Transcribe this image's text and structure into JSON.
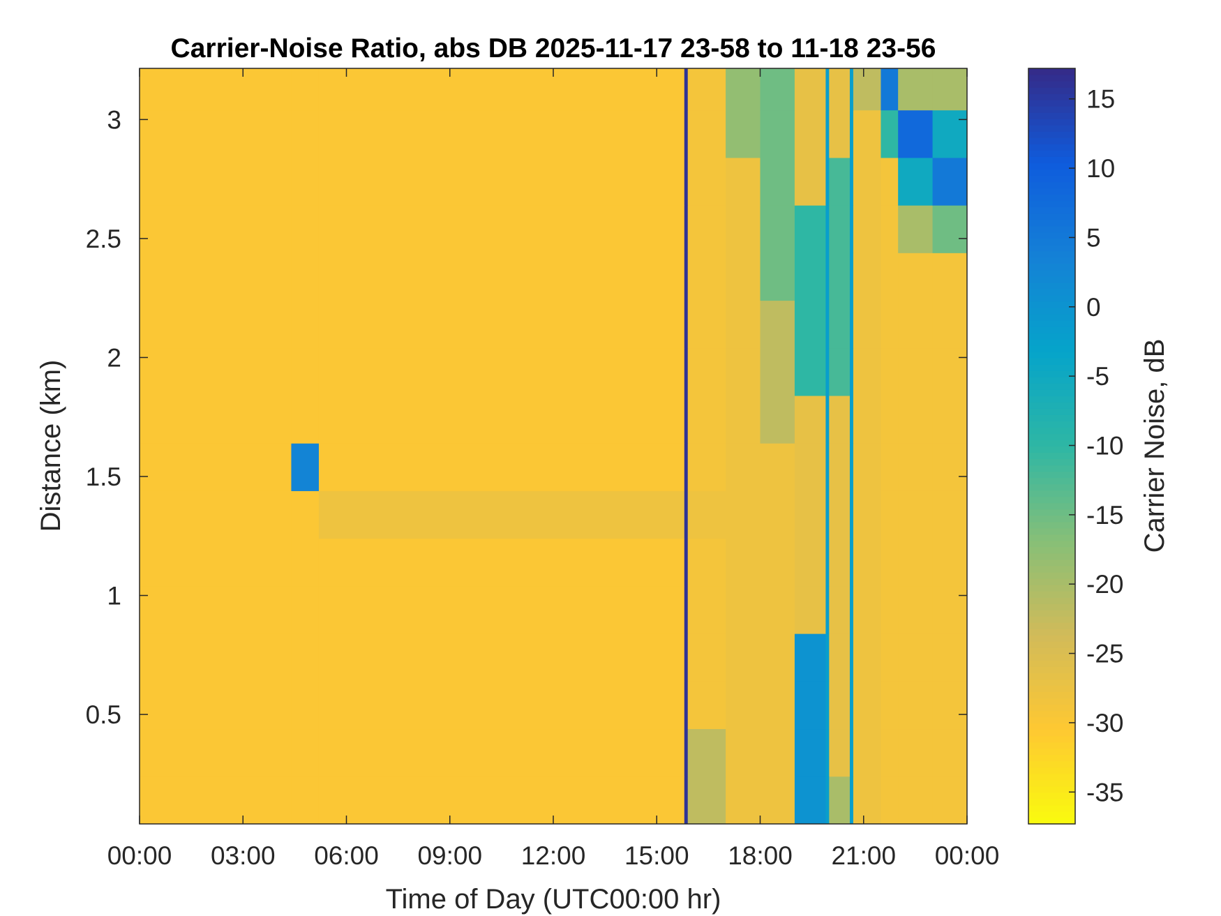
{
  "chart_data": {
    "type": "heatmap",
    "title": "Carrier-Noise Ratio, abs DB 2025-11-17 23-58 to 11-18 23-56",
    "x_label": "Time of Day (UTC00:00 hr)",
    "y_label": "Distance (km)",
    "colorbar_label": "Carrier Noise, dB",
    "xlim": [
      0,
      24
    ],
    "xticks": [
      {
        "value": 0,
        "label": "00:00"
      },
      {
        "value": 3,
        "label": "03:00"
      },
      {
        "value": 6,
        "label": "06:00"
      },
      {
        "value": 9,
        "label": "09:00"
      },
      {
        "value": 12,
        "label": "12:00"
      },
      {
        "value": 15,
        "label": "15:00"
      },
      {
        "value": 18,
        "label": "18:00"
      },
      {
        "value": 21,
        "label": "21:00"
      },
      {
        "value": 24,
        "label": "00:00"
      }
    ],
    "ylim": [
      0.04,
      3.215
    ],
    "yticks": [
      0.5,
      1,
      1.5,
      2,
      2.5,
      3
    ],
    "clim": [
      -37.3,
      17.2
    ],
    "cticks": [
      -35,
      -30,
      -25,
      -20,
      -15,
      -10,
      -5,
      0,
      5,
      10,
      15
    ],
    "colormap": [
      "#f9fb0e",
      "#fec832",
      "#d1bb59",
      "#87bf77",
      "#2eb7a4",
      "#06a4ca",
      "#1481d6",
      "#0f5cdd",
      "#352a87"
    ],
    "xbins": [
      0,
      4.4,
      5.2,
      15.8,
      15.9,
      17,
      18,
      19,
      19.9,
      20,
      20.6,
      20.7,
      21.5,
      22,
      23,
      24
    ],
    "ybins": [
      0.04,
      0.24,
      0.44,
      0.64,
      0.84,
      1.04,
      1.24,
      1.44,
      1.64,
      1.84,
      2.04,
      2.24,
      2.44,
      2.64,
      2.84,
      3.04,
      3.215
    ],
    "z": [
      [
        -30,
        -30,
        -30,
        16,
        -22,
        -28,
        -28,
        0,
        -2,
        -20,
        -2,
        -28,
        -29,
        -29,
        -29
      ],
      [
        -30,
        -30,
        -30,
        16,
        -22,
        -28,
        -28,
        0,
        -2,
        -27,
        -2,
        -28,
        -29,
        -29,
        -29
      ],
      [
        -30,
        -30,
        -30,
        16,
        -29,
        -28,
        -28,
        0,
        -2,
        -27,
        -2,
        -28,
        -29,
        -29,
        -29
      ],
      [
        -30,
        -30,
        -30,
        16,
        -29,
        -28,
        -28,
        0,
        -2,
        -27,
        -2,
        -28,
        -29,
        -29,
        -29
      ],
      [
        -30,
        -30,
        -30,
        16,
        -29,
        -28,
        -28,
        -27,
        -2,
        -27,
        -2,
        -28,
        -29,
        -29,
        -29
      ],
      [
        -30,
        -30,
        -30,
        16,
        -29,
        -28,
        -28,
        -27,
        -2,
        -27,
        -2,
        -28,
        -29,
        -29,
        -29
      ],
      [
        -30,
        -30,
        -28,
        16,
        -28,
        -28,
        -28,
        -27,
        -2,
        -27,
        -2,
        -28,
        -29,
        -29,
        -29
      ],
      [
        -30,
        3,
        -30,
        16,
        -29,
        -28,
        -28,
        -27,
        -2,
        -27,
        -2,
        -28,
        -29,
        -29,
        -29
      ],
      [
        -30,
        -30,
        -30,
        16,
        -29,
        -28,
        -22,
        -27,
        -2,
        -27,
        -2,
        -28,
        -29,
        -29,
        -29
      ],
      [
        -30,
        -30,
        -30,
        16,
        -29,
        -28,
        -22,
        -10,
        -2,
        -12,
        -2,
        -28,
        -29,
        -29,
        -29
      ],
      [
        -30,
        -30,
        -30,
        16,
        -29,
        -28,
        -22,
        -10,
        -2,
        -12,
        -2,
        -28,
        -29,
        -29,
        -29
      ],
      [
        -30,
        -30,
        -30,
        16,
        -29,
        -28,
        -15,
        -10,
        -2,
        -12,
        -2,
        -28,
        -29,
        -29,
        -29
      ],
      [
        -30,
        -30,
        -30,
        16,
        -29,
        -28,
        -15,
        -10,
        -2,
        -12,
        -2,
        -28,
        -29,
        -20,
        -15
      ],
      [
        -30,
        -30,
        -30,
        16,
        -29,
        -28,
        -15,
        -27,
        -2,
        -12,
        -2,
        -28,
        -29,
        -5,
        5
      ],
      [
        -30,
        -30,
        -30,
        16,
        -29,
        -18,
        -15,
        -27,
        -2,
        -27,
        -2,
        -28,
        -10,
        8,
        -5
      ],
      [
        -30,
        -30,
        -30,
        16,
        -29,
        -18,
        -15,
        -27,
        -2,
        -27,
        -2,
        -22,
        5,
        -20,
        -20
      ]
    ]
  }
}
